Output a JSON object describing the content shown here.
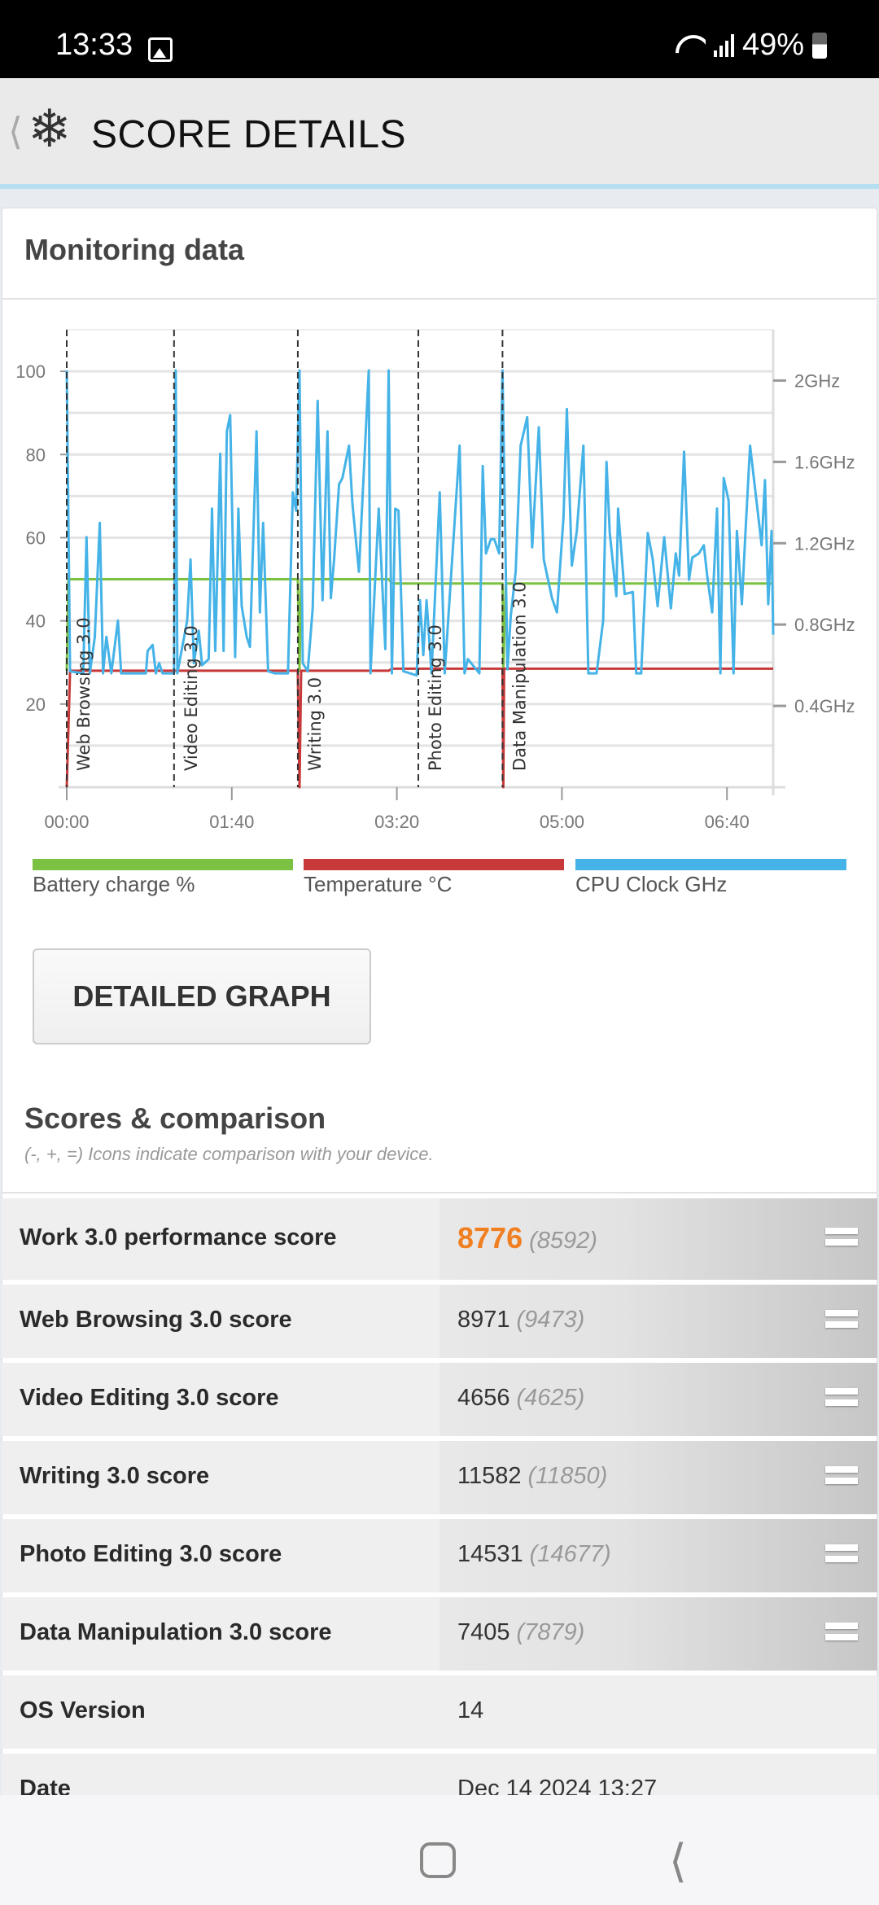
{
  "status_bar": {
    "time": "13:33",
    "battery": "49%",
    "icons": [
      "gallery-icon",
      "wifi-icon",
      "signal-icon",
      "battery-icon"
    ]
  },
  "header": {
    "title": "SCORE DETAILS",
    "back_icon": "chevron-left-icon",
    "logo_icon": "snowflake-icon"
  },
  "monitoring": {
    "title": "Monitoring data",
    "legend": [
      {
        "label": "Battery charge %",
        "color": "#7cc242"
      },
      {
        "label": "Temperature °C",
        "color": "#c8393a"
      },
      {
        "label": "CPU Clock GHz",
        "color": "#45b3e7"
      }
    ],
    "button": "DETAILED GRAPH"
  },
  "chart_data": {
    "type": "line",
    "grid": true,
    "x_unit": "seconds (shown as mm:ss)",
    "x_ticks": [
      "00:00",
      "01:40",
      "03:20",
      "05:00",
      "06:40"
    ],
    "x_tick_values": [
      0,
      100,
      200,
      300,
      400
    ],
    "xlim": [
      0,
      428
    ],
    "y_left_ticks": [
      "20",
      "40",
      "60",
      "80",
      "100"
    ],
    "y_left_tick_values": [
      20,
      40,
      60,
      80,
      100
    ],
    "ylim_left": [
      0,
      110
    ],
    "y_right_ticks": [
      "0.4GHz",
      "0.8GHz",
      "1.2GHz",
      "1.6GHz",
      "2GHz"
    ],
    "y_right_tick_values": [
      0.4,
      0.8,
      1.2,
      1.6,
      2.0
    ],
    "ylim_right": [
      0,
      2.25
    ],
    "markers": [
      {
        "label": "Web Browsing 3.0",
        "t": 0
      },
      {
        "label": "Video Editing 3.0",
        "t": 65
      },
      {
        "label": "Writing 3.0",
        "t": 140
      },
      {
        "label": "Photo Editing 3.0",
        "t": 213
      },
      {
        "label": "Data Manipulation 3.0",
        "t": 264
      }
    ],
    "series": [
      {
        "name": "Battery charge %",
        "axis": "left",
        "color": "#7cc242",
        "points": [
          [
            0,
            28
          ],
          [
            1,
            50
          ],
          [
            140,
            50
          ],
          [
            141,
            28
          ],
          [
            142,
            50
          ],
          [
            195,
            50
          ],
          [
            197,
            49
          ],
          [
            264,
            49
          ],
          [
            264.5,
            28
          ],
          [
            266,
            49
          ],
          [
            428,
            49
          ]
        ]
      },
      {
        "name": "Temperature °C",
        "axis": "left",
        "color": "#c8393a",
        "points": [
          [
            0,
            0
          ],
          [
            2,
            28
          ],
          [
            140,
            28
          ],
          [
            141,
            0
          ],
          [
            142,
            28
          ],
          [
            195,
            28
          ],
          [
            197,
            28.5
          ],
          [
            264,
            28.5
          ],
          [
            264.5,
            0
          ],
          [
            265,
            28.5
          ],
          [
            428,
            28.5
          ]
        ]
      },
      {
        "name": "CPU Clock GHz",
        "axis": "right",
        "color": "#45b3e7",
        "points": [
          [
            0,
            2.05
          ],
          [
            2,
            0.57
          ],
          [
            10,
            0.56
          ],
          [
            12,
            1.23
          ],
          [
            14,
            0.56
          ],
          [
            17,
            0.74
          ],
          [
            20,
            1.3
          ],
          [
            22,
            0.56
          ],
          [
            24,
            0.74
          ],
          [
            27,
            0.56
          ],
          [
            31,
            0.82
          ],
          [
            33,
            0.56
          ],
          [
            48,
            0.56
          ],
          [
            49,
            0.67
          ],
          [
            52,
            0.7
          ],
          [
            54,
            0.56
          ],
          [
            56,
            0.61
          ],
          [
            58,
            0.56
          ],
          [
            65,
            0.56
          ],
          [
            66,
            2.05
          ],
          [
            67,
            0.56
          ],
          [
            73,
            0.82
          ],
          [
            75,
            1.12
          ],
          [
            77,
            0.61
          ],
          [
            80,
            0.77
          ],
          [
            82,
            0.6
          ],
          [
            86,
            0.63
          ],
          [
            88,
            1.37
          ],
          [
            90,
            0.67
          ],
          [
            93,
            1.64
          ],
          [
            95,
            0.67
          ],
          [
            97,
            1.75
          ],
          [
            99,
            1.83
          ],
          [
            102,
            0.64
          ],
          [
            104,
            1.37
          ],
          [
            106,
            0.89
          ],
          [
            109,
            0.74
          ],
          [
            111,
            0.69
          ],
          [
            115,
            1.75
          ],
          [
            117,
            0.86
          ],
          [
            119,
            1.3
          ],
          [
            122,
            0.57
          ],
          [
            126,
            0.56
          ],
          [
            134,
            0.56
          ],
          [
            137,
            1.45
          ],
          [
            139,
            1.36
          ],
          [
            141,
            2.05
          ],
          [
            143,
            0.61
          ],
          [
            146,
            0.57
          ],
          [
            149,
            0.88
          ],
          [
            152,
            1.9
          ],
          [
            155,
            0.92
          ],
          [
            158,
            1.75
          ],
          [
            160,
            0.93
          ],
          [
            162,
            1.12
          ],
          [
            165,
            1.49
          ],
          [
            167,
            1.52
          ],
          [
            171,
            1.68
          ],
          [
            173,
            1.4
          ],
          [
            177,
            1.06
          ],
          [
            183,
            2.05
          ],
          [
            184,
            0.56
          ],
          [
            189,
            1.37
          ],
          [
            193,
            0.68
          ],
          [
            195,
            2.05
          ],
          [
            197,
            0.56
          ],
          [
            199,
            1.37
          ],
          [
            201,
            1.36
          ],
          [
            204,
            0.57
          ],
          [
            212,
            0.55
          ],
          [
            214,
            0.92
          ],
          [
            216,
            0.65
          ],
          [
            218,
            0.92
          ],
          [
            221,
            0.56
          ],
          [
            226,
            1.45
          ],
          [
            229,
            0.56
          ],
          [
            238,
            1.68
          ],
          [
            241,
            0.56
          ],
          [
            243,
            0.63
          ],
          [
            250,
            0.56
          ],
          [
            252,
            1.58
          ],
          [
            254,
            1.15
          ],
          [
            257,
            1.22
          ],
          [
            259,
            1.22
          ],
          [
            262,
            1.15
          ],
          [
            264,
            2.05
          ],
          [
            267,
            0.58
          ],
          [
            269,
            0.84
          ],
          [
            272,
            1.06
          ],
          [
            275,
            1.68
          ],
          [
            279,
            1.82
          ],
          [
            282,
            1.18
          ],
          [
            286,
            1.77
          ],
          [
            289,
            1.12
          ],
          [
            294,
            0.93
          ],
          [
            297,
            0.86
          ],
          [
            301,
            1.33
          ],
          [
            303,
            1.86
          ],
          [
            306,
            1.09
          ],
          [
            309,
            1.26
          ],
          [
            313,
            1.68
          ],
          [
            316,
            0.56
          ],
          [
            321,
            0.56
          ],
          [
            325,
            0.82
          ],
          [
            327,
            1.6
          ],
          [
            329,
            1.25
          ],
          [
            333,
            0.94
          ],
          [
            334,
            1.37
          ],
          [
            338,
            0.95
          ],
          [
            343,
            0.96
          ],
          [
            345,
            0.56
          ],
          [
            348,
            0.56
          ],
          [
            352,
            1.25
          ],
          [
            355,
            1.12
          ],
          [
            358,
            0.89
          ],
          [
            362,
            1.23
          ],
          [
            366,
            0.88
          ],
          [
            369,
            1.15
          ],
          [
            371,
            1.04
          ],
          [
            374,
            1.65
          ],
          [
            377,
            1.02
          ],
          [
            379,
            1.13
          ],
          [
            383,
            1.15
          ],
          [
            386,
            1.19
          ],
          [
            388,
            1.04
          ],
          [
            391,
            0.86
          ],
          [
            394,
            1.37
          ],
          [
            396,
            0.56
          ],
          [
            398,
            1.52
          ],
          [
            401,
            1.41
          ],
          [
            404,
            0.56
          ],
          [
            406,
            1.26
          ],
          [
            409,
            0.9
          ],
          [
            411,
            1.22
          ],
          [
            414,
            1.68
          ],
          [
            421,
            1.19
          ],
          [
            423,
            1.51
          ],
          [
            425,
            0.9
          ],
          [
            427,
            1.26
          ],
          [
            428,
            0.75
          ]
        ]
      }
    ]
  },
  "scores": {
    "title": "Scores & comparison",
    "subtitle": "(-, +, =) Icons indicate comparison with your device.",
    "rows": [
      {
        "label": "Work 3.0 performance score",
        "value": "8776",
        "ref": "(8592)",
        "comparison": "="
      },
      {
        "label": "Web Browsing 3.0 score",
        "value": "8971",
        "ref": "(9473)",
        "comparison": "="
      },
      {
        "label": "Video Editing 3.0 score",
        "value": "4656",
        "ref": "(4625)",
        "comparison": "="
      },
      {
        "label": "Writing 3.0 score",
        "value": "11582",
        "ref": "(11850)",
        "comparison": "="
      },
      {
        "label": "Photo Editing 3.0 score",
        "value": "14531",
        "ref": "(14677)",
        "comparison": "="
      },
      {
        "label": "Data Manipulation 3.0 score",
        "value": "7405",
        "ref": "(7879)",
        "comparison": "="
      }
    ],
    "info": [
      {
        "label": "OS Version",
        "value": "14"
      },
      {
        "label": "Date",
        "value": "Dec 14 2024 13:27"
      }
    ]
  },
  "nav": {
    "home_icon": "home-icon",
    "back_icon": "back-icon"
  }
}
